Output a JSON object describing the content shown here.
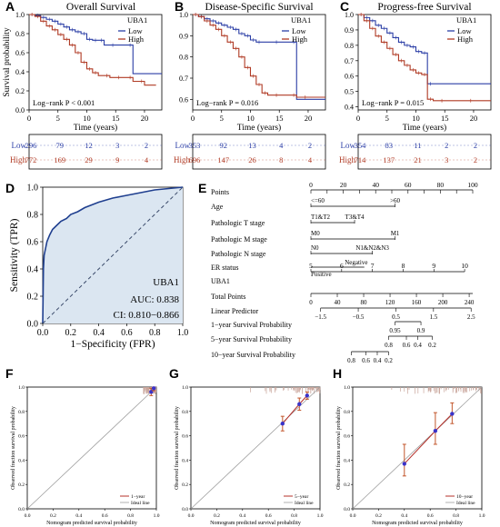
{
  "colors": {
    "low": "#2b3ea6",
    "high": "#b03a24",
    "roc": "#1f3f8f",
    "rocFill": "#dbe6f1",
    "cal": "#c9a59b",
    "calPoint": "#3a33c9"
  },
  "chart_data": [
    {
      "panel": "A",
      "type": "line",
      "title": "Overall Survival",
      "xlabel": "Time (years)",
      "ylabel": "Survival probability",
      "xticks": [
        0,
        5,
        10,
        15,
        20
      ],
      "yticks": [
        0.0,
        0.2,
        0.4,
        0.6,
        0.8,
        1.0
      ],
      "xlim": [
        0,
        23
      ],
      "ylim": [
        0,
        1
      ],
      "legend": {
        "title": "UBA1",
        "entries": [
          "Low",
          "High"
        ],
        "position": "top-right"
      },
      "annotation": "Log−rank  P < 0.001",
      "series": [
        {
          "name": "Low",
          "x": [
            0,
            1,
            2,
            3,
            4,
            5,
            6,
            7,
            8,
            9,
            10,
            11,
            12,
            13,
            15,
            18,
            23
          ],
          "y": [
            1.0,
            0.99,
            0.97,
            0.95,
            0.93,
            0.9,
            0.87,
            0.84,
            0.82,
            0.8,
            0.74,
            0.73,
            0.73,
            0.68,
            0.68,
            0.38,
            0.38
          ]
        },
        {
          "name": "High",
          "x": [
            0,
            1,
            2,
            3,
            4,
            5,
            6,
            7,
            8,
            9,
            10,
            11,
            12,
            14,
            16,
            18,
            20,
            22
          ],
          "y": [
            1.0,
            0.98,
            0.93,
            0.88,
            0.84,
            0.79,
            0.74,
            0.68,
            0.6,
            0.5,
            0.43,
            0.39,
            0.36,
            0.34,
            0.34,
            0.3,
            0.26,
            0.26
          ]
        }
      ]
    },
    {
      "panel": "B",
      "type": "line",
      "title": "Disease-Specific Survival",
      "xlabel": "Time (years)",
      "ylabel": "",
      "xticks": [
        0,
        5,
        10,
        15,
        20
      ],
      "yticks": [
        0.6,
        0.7,
        0.8,
        0.9,
        1.0
      ],
      "xlim": [
        0,
        23
      ],
      "ylim": [
        0.55,
        1
      ],
      "legend": {
        "title": "UBA1",
        "entries": [
          "Low",
          "High"
        ],
        "position": "top-right"
      },
      "annotation": "Log−rank  P = 0.016",
      "series": [
        {
          "name": "Low",
          "x": [
            0,
            1,
            2,
            3,
            4,
            5,
            6,
            7,
            8,
            9,
            10,
            11,
            12,
            15,
            18,
            23
          ],
          "y": [
            1.0,
            0.99,
            0.98,
            0.97,
            0.96,
            0.95,
            0.94,
            0.93,
            0.91,
            0.9,
            0.88,
            0.87,
            0.87,
            0.87,
            0.6,
            0.6
          ]
        },
        {
          "name": "High",
          "x": [
            0,
            1,
            2,
            3,
            4,
            5,
            6,
            7,
            8,
            9,
            10,
            11,
            12,
            13,
            15,
            18,
            20,
            23
          ],
          "y": [
            1.0,
            0.99,
            0.97,
            0.95,
            0.93,
            0.9,
            0.87,
            0.84,
            0.8,
            0.75,
            0.71,
            0.67,
            0.63,
            0.62,
            0.62,
            0.61,
            0.61,
            0.61
          ]
        }
      ]
    },
    {
      "panel": "C",
      "type": "line",
      "title": "Progress-free Survival",
      "xlabel": "Time (years)",
      "ylabel": "",
      "xticks": [
        0,
        5,
        10,
        15,
        20
      ],
      "yticks": [
        0.4,
        0.5,
        0.6,
        0.7,
        0.8,
        0.9,
        1.0
      ],
      "xlim": [
        0,
        23
      ],
      "ylim": [
        0.38,
        1
      ],
      "legend": {
        "title": "UBA1",
        "entries": [
          "Low",
          "High"
        ],
        "position": "top-right"
      },
      "annotation": "Log−rank  P = 0.015",
      "series": [
        {
          "name": "Low",
          "x": [
            0,
            1,
            2,
            3,
            4,
            5,
            6,
            7,
            8,
            9,
            10,
            11,
            12,
            13,
            23
          ],
          "y": [
            1.0,
            0.98,
            0.96,
            0.93,
            0.91,
            0.88,
            0.85,
            0.82,
            0.8,
            0.79,
            0.76,
            0.75,
            0.55,
            0.55,
            0.55
          ]
        },
        {
          "name": "High",
          "x": [
            0,
            1,
            2,
            3,
            4,
            5,
            6,
            7,
            8,
            9,
            10,
            11,
            12,
            13,
            15,
            20,
            23
          ],
          "y": [
            1.0,
            0.96,
            0.91,
            0.86,
            0.82,
            0.78,
            0.74,
            0.7,
            0.67,
            0.64,
            0.62,
            0.61,
            0.45,
            0.44,
            0.44,
            0.44,
            0.44
          ]
        }
      ]
    },
    {
      "panel": "risk",
      "type": "table",
      "columns": [
        "0",
        "5",
        "10",
        "15",
        "20"
      ],
      "rows": {
        "A": {
          "Low": [
            296,
            79,
            12,
            3,
            2
          ],
          "High": [
            772,
            169,
            29,
            9,
            4
          ]
        },
        "B": {
          "Low": [
            353,
            92,
            13,
            4,
            2
          ],
          "High": [
            696,
            147,
            26,
            8,
            4
          ]
        },
        "C": {
          "Low": [
            354,
            83,
            11,
            2,
            2
          ],
          "High": [
            714,
            137,
            21,
            3,
            2
          ]
        }
      }
    },
    {
      "panel": "D",
      "type": "line",
      "xlabel": "1−Specificity (FPR)",
      "ylabel": "Sensitivity (TPR)",
      "xticks": [
        0.0,
        0.2,
        0.4,
        0.6,
        0.8,
        1.0
      ],
      "yticks": [
        0.0,
        0.2,
        0.4,
        0.6,
        0.8,
        1.0
      ],
      "label": "UBA1",
      "auc": "AUC: 0.838",
      "ci": "CI: 0.810−0.866",
      "roc_x": [
        0,
        0.005,
        0.01,
        0.02,
        0.03,
        0.05,
        0.07,
        0.1,
        0.13,
        0.17,
        0.2,
        0.25,
        0.3,
        0.35,
        0.4,
        0.5,
        0.6,
        0.7,
        0.8,
        0.9,
        1.0
      ],
      "roc_y": [
        0,
        0.4,
        0.5,
        0.55,
        0.6,
        0.65,
        0.69,
        0.72,
        0.75,
        0.77,
        0.8,
        0.82,
        0.85,
        0.87,
        0.89,
        0.92,
        0.94,
        0.96,
        0.98,
        0.99,
        1.0
      ]
    },
    {
      "panel": "E",
      "type": "nomogram",
      "rows": [
        "Points",
        "Age",
        "Pathologic T stage",
        "Pathologic M stage",
        "Pathologic N stage",
        "ER status",
        "UBA1",
        "Total Points",
        "Linear Predictor",
        "1−year Survival Probability",
        "5−year Survival Probability",
        "10−year Survival Probability"
      ],
      "points_ticks": [
        "0",
        "20",
        "40",
        "60",
        "80",
        "100"
      ],
      "age": [
        "<=60",
        ">60"
      ],
      "t_stage": [
        "T1&T2",
        "T3&T4"
      ],
      "m_stage": [
        "M0",
        "M1"
      ],
      "n_stage": [
        "N0",
        "N1&N2&N3"
      ],
      "er": [
        "Positive",
        "Negative"
      ],
      "uba1_ticks": [
        "5",
        "6",
        "7",
        "8",
        "9",
        "10"
      ],
      "total_ticks": [
        "0",
        "40",
        "80",
        "120",
        "160",
        "200",
        "240"
      ],
      "lp_ticks": [
        "−1.5",
        "−0.5",
        "0.5",
        "1.5",
        "2.5"
      ],
      "surv1": [
        "0.95",
        "0.9"
      ],
      "surv5": [
        "0.8",
        "0.6",
        "0.4",
        "0.2"
      ],
      "surv10": [
        "0.8",
        "0.6",
        "0.4",
        "0.2"
      ]
    },
    {
      "panel": "F",
      "type": "line",
      "xlabel": "Nomogram predicted survival probability",
      "ylabel": "Observed fraction survival probability",
      "ticks": [
        "0.0",
        "0.2",
        "0.4",
        "0.6",
        "0.8",
        "1.0"
      ],
      "legend": [
        "1−year",
        "Ideal line"
      ],
      "points": [
        {
          "x": 0.96,
          "y": 0.96,
          "lo": 0.93,
          "hi": 0.99
        },
        {
          "x": 0.98,
          "y": 0.99,
          "lo": 0.97,
          "hi": 1.0
        }
      ]
    },
    {
      "panel": "G",
      "type": "line",
      "xlabel": "Nomogram predicted survival probability",
      "ylabel": "Observed fraction survival probability",
      "ticks": [
        "0.0",
        "0.2",
        "0.4",
        "0.6",
        "0.8",
        "1.0"
      ],
      "legend": [
        "5−year",
        "Ideal line"
      ],
      "points": [
        {
          "x": 0.71,
          "y": 0.7,
          "lo": 0.64,
          "hi": 0.76
        },
        {
          "x": 0.84,
          "y": 0.86,
          "lo": 0.81,
          "hi": 0.91
        },
        {
          "x": 0.9,
          "y": 0.93,
          "lo": 0.9,
          "hi": 0.96
        }
      ]
    },
    {
      "panel": "H",
      "type": "line",
      "xlabel": "Nomogram predicted survival probability",
      "ylabel": "Observed fraction survival probability",
      "ticks": [
        "0.0",
        "0.2",
        "0.4",
        "0.6",
        "0.8",
        "1.0"
      ],
      "legend": [
        "10−year",
        "Ideal line"
      ],
      "points": [
        {
          "x": 0.4,
          "y": 0.37,
          "lo": 0.27,
          "hi": 0.53
        },
        {
          "x": 0.64,
          "y": 0.64,
          "lo": 0.53,
          "hi": 0.79
        },
        {
          "x": 0.77,
          "y": 0.78,
          "lo": 0.7,
          "hi": 0.87
        }
      ]
    }
  ]
}
